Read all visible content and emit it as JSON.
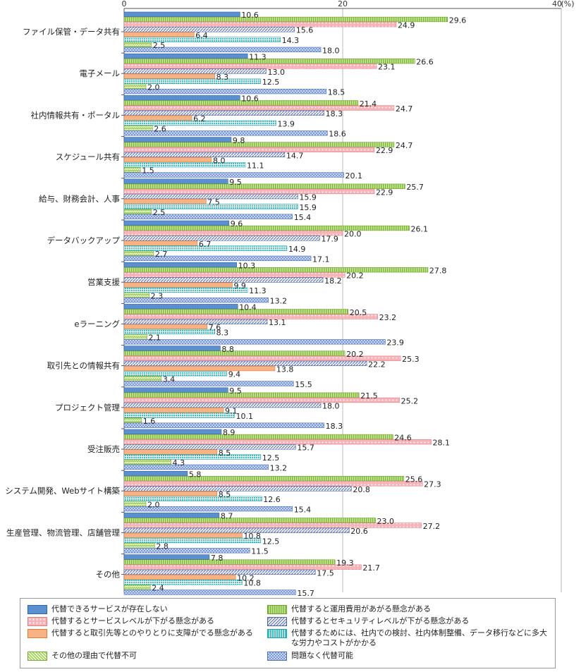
{
  "chart_data": {
    "type": "bar",
    "orientation": "horizontal",
    "xlim": [
      0,
      40
    ],
    "x_ticks": [
      "0",
      "20",
      "40"
    ],
    "unit_label": "(%)",
    "grid": true,
    "legend_position": "bottom",
    "categories": [
      "ファイル保管・データ共有",
      "電子メール",
      "社内情報共有・ポータル",
      "スケジュール共有",
      "給与、財務会計、人事",
      "データバックアップ",
      "営業支援",
      "eラーニング",
      "取引先との情報共有",
      "プロジェクト管理",
      "受注販売",
      "システム開発、Webサイト構築",
      "生産管理、物流管理、店舗管理",
      "その他"
    ],
    "series": [
      {
        "name": "代替できるサービスが存在しない",
        "color": "#5b8fd0",
        "pattern": "solid",
        "values": [
          10.6,
          11.3,
          10.6,
          9.8,
          9.5,
          9.6,
          10.3,
          10.4,
          8.8,
          9.5,
          8.9,
          5.8,
          8.7,
          7.8
        ]
      },
      {
        "name": "代替すると運用費用があがる懸念がある",
        "color": "#a9d86e",
        "pattern": "vlines",
        "values": [
          29.6,
          26.6,
          21.4,
          24.7,
          25.7,
          26.1,
          27.8,
          20.5,
          20.2,
          21.5,
          24.6,
          25.6,
          23.0,
          19.3
        ]
      },
      {
        "name": "代替するとサービスレベルが下がる懸念がある",
        "color": "#f5a3a8",
        "pattern": "dots",
        "values": [
          24.9,
          23.1,
          24.7,
          22.9,
          22.9,
          20.0,
          20.2,
          23.2,
          25.3,
          25.2,
          28.1,
          27.3,
          27.2,
          21.7
        ]
      },
      {
        "name": "代替するとセキュリティレベルが下がる懸念がある",
        "color": "#8fa5d8",
        "pattern": "diag",
        "values": [
          15.6,
          13.0,
          18.3,
          14.7,
          15.9,
          17.9,
          18.2,
          13.1,
          22.2,
          18.0,
          15.7,
          20.8,
          20.6,
          17.5
        ]
      },
      {
        "name": "代替すると取引先等とのやりとりに支障がでる懸念がある",
        "color": "#f7b383",
        "pattern": "solid",
        "values": [
          6.4,
          8.3,
          6.2,
          8.0,
          7.5,
          6.7,
          9.9,
          7.6,
          13.8,
          9.1,
          8.5,
          8.5,
          10.8,
          10.2
        ]
      },
      {
        "name": "代替するためには、社内での検討、社内体制整備、データ移行などに多大な労力やコストがかかる",
        "color": "#5fd0d8",
        "pattern": "grid",
        "values": [
          14.3,
          12.5,
          13.9,
          11.1,
          15.9,
          14.9,
          11.3,
          8.3,
          9.4,
          10.1,
          12.5,
          12.6,
          12.5,
          10.8
        ]
      },
      {
        "name": "その他の理由で代替不可",
        "color": "#b7dc7a",
        "pattern": "zigzag",
        "values": [
          2.5,
          2.0,
          2.6,
          1.5,
          2.5,
          2.7,
          2.3,
          2.1,
          3.4,
          1.6,
          4.3,
          2.0,
          2.8,
          2.4
        ]
      },
      {
        "name": "問題なく代替可能",
        "color": "#9ab3e3",
        "pattern": "check",
        "values": [
          18.0,
          18.5,
          18.6,
          20.1,
          15.4,
          17.1,
          13.2,
          23.9,
          15.5,
          18.3,
          13.2,
          15.4,
          11.5,
          15.7
        ]
      }
    ],
    "legend_order": [
      0,
      1,
      2,
      3,
      4,
      5,
      6,
      7
    ]
  }
}
